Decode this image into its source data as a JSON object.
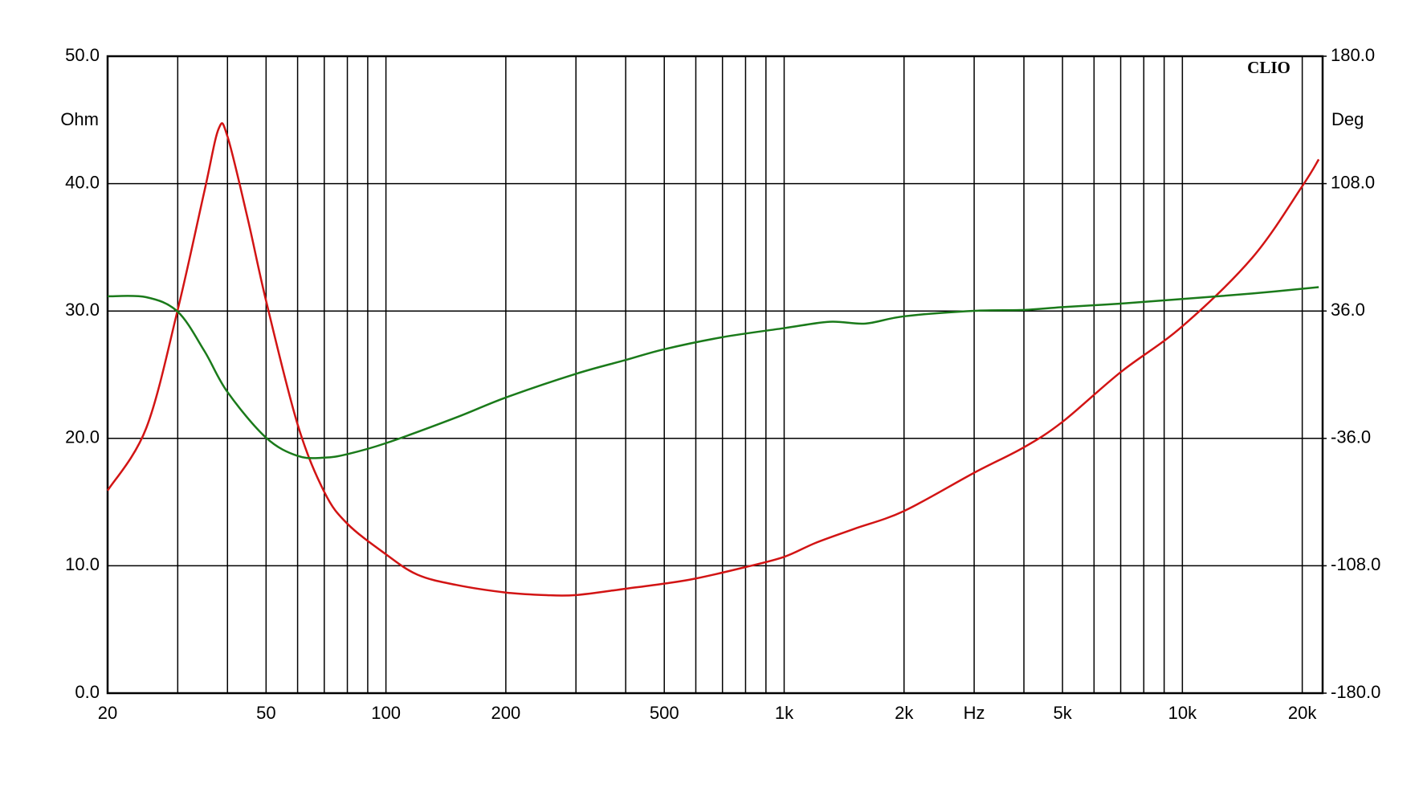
{
  "chart_data": {
    "type": "line",
    "ylabel": "Ohm",
    "y2label": "Deg",
    "annotation": "CLIO",
    "log_x": true,
    "grid": true,
    "xlim": [
      20,
      22500
    ],
    "ylim": [
      0,
      50
    ],
    "y2lim": [
      -180,
      180
    ],
    "xticks": [
      20,
      50,
      100,
      200,
      500,
      {
        "value": 1000,
        "label": "1k"
      },
      {
        "value": 2000,
        "label": "2k"
      },
      {
        "value": 3000,
        "label": "Hz"
      },
      {
        "value": 5000,
        "label": "5k"
      },
      {
        "value": 10000,
        "label": "10k"
      },
      {
        "value": 20000,
        "label": "20k"
      }
    ],
    "xminor": [
      30,
      40,
      60,
      70,
      80,
      90,
      300,
      400,
      600,
      700,
      800,
      900,
      4000,
      6000,
      7000,
      8000,
      9000
    ],
    "yticks": [
      {
        "value": 0,
        "label": "0.0"
      },
      {
        "value": 10,
        "label": "10.0"
      },
      {
        "value": 20,
        "label": "20.0"
      },
      {
        "value": 30,
        "label": "30.0"
      },
      {
        "value": 40,
        "label": "40.0"
      },
      {
        "value": 50,
        "label": "50.0"
      }
    ],
    "y2ticks": [
      {
        "value": -180,
        "label": "-180.0"
      },
      {
        "value": -108,
        "label": "-108.0"
      },
      {
        "value": -36,
        "label": "-36.0"
      },
      {
        "value": 36,
        "label": "36.0"
      },
      {
        "value": 108,
        "label": "108.0"
      },
      {
        "value": 180,
        "label": "180.0"
      }
    ],
    "series": [
      {
        "color": "#d21414",
        "x": [
          20,
          25,
          30,
          35,
          38,
          40,
          45,
          50,
          60,
          70,
          80,
          100,
          120,
          150,
          200,
          250,
          300,
          400,
          500,
          600,
          800,
          1000,
          1200,
          1500,
          2000,
          3000,
          4000,
          5000,
          7000,
          10000,
          15000,
          20000,
          22000
        ],
        "values": [
          15.9,
          20.8,
          30.1,
          39.4,
          44.3,
          43.7,
          37.2,
          30.8,
          21.1,
          15.8,
          13.3,
          10.9,
          9.3,
          8.5,
          7.9,
          7.7,
          7.7,
          8.2,
          8.6,
          9.0,
          9.9,
          10.7,
          11.8,
          12.9,
          14.3,
          17.3,
          19.3,
          21.3,
          25.2,
          28.8,
          34.2,
          39.8,
          41.9
        ]
      },
      {
        "color": "#1a7a1a",
        "axis": "y2",
        "x": [
          20,
          25,
          30,
          35,
          40,
          50,
          60,
          70,
          80,
          100,
          150,
          200,
          300,
          400,
          500,
          700,
          1000,
          1300,
          1600,
          2000,
          3000,
          4000,
          5000,
          7000,
          10000,
          15000,
          22000
        ],
        "values": [
          44.3,
          43.8,
          35.6,
          13.4,
          -9.8,
          -35.6,
          -45.9,
          -46.9,
          -44.9,
          -38.7,
          -24.2,
          -12.9,
          0.5,
          8.3,
          14.4,
          21.2,
          26.3,
          29.9,
          28.9,
          33.0,
          36.1,
          36.6,
          38.2,
          40.2,
          42.8,
          45.9,
          49.5
        ]
      }
    ]
  }
}
